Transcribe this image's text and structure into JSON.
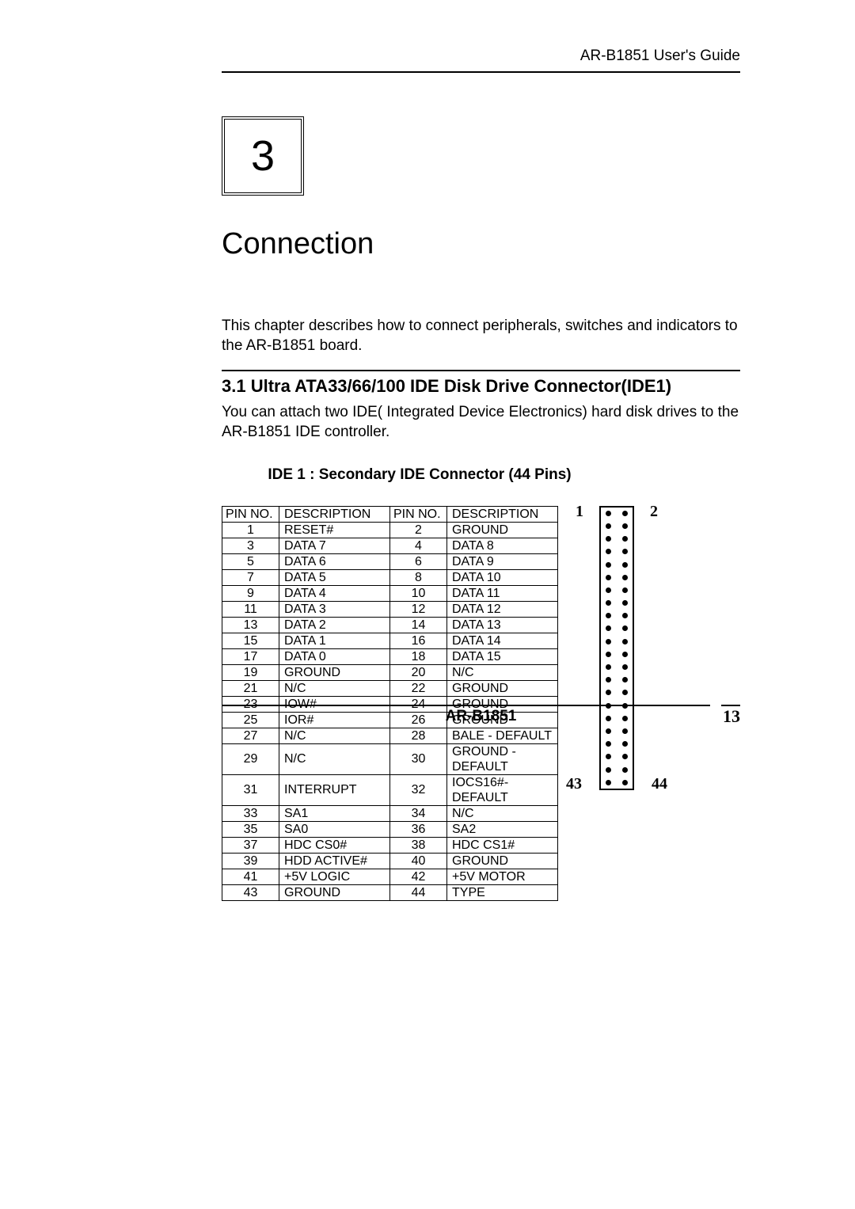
{
  "header": {
    "guide": "AR-B1851 User's Guide"
  },
  "chapter": {
    "number": "3",
    "title": "Connection"
  },
  "intro": "This chapter describes how to connect peripherals, switches and indicators to the AR-B1851  board.",
  "section": {
    "heading": "3.1 Ultra ATA33/66/100 IDE Disk Drive Connector(IDE1)",
    "body": "You can attach two IDE( Integrated Device Electronics) hard disk drives to the AR-B1851  IDE controller.",
    "ide_title": "IDE 1 :  Secondary IDE Connector (44 Pins)"
  },
  "table": {
    "headers": [
      "PIN NO.",
      "DESCRIPTION",
      "PIN NO.",
      "DESCRIPTION"
    ],
    "rows": [
      [
        "1",
        "RESET#",
        "2",
        "GROUND"
      ],
      [
        "3",
        "DATA 7",
        "4",
        "DATA 8"
      ],
      [
        "5",
        "DATA 6",
        "6",
        "DATA 9"
      ],
      [
        "7",
        "DATA 5",
        "8",
        "DATA 10"
      ],
      [
        "9",
        "DATA 4",
        "10",
        "DATA 11"
      ],
      [
        "11",
        "DATA 3",
        "12",
        "DATA 12"
      ],
      [
        "13",
        "DATA 2",
        "14",
        "DATA 13"
      ],
      [
        "15",
        "DATA 1",
        "16",
        "DATA 14"
      ],
      [
        "17",
        "DATA 0",
        "18",
        "DATA 15"
      ],
      [
        "19",
        "GROUND",
        "20",
        "N/C"
      ],
      [
        "21",
        "N/C",
        "22",
        "GROUND"
      ],
      [
        "23",
        "IOW#",
        "24",
        "GROUND"
      ],
      [
        "25",
        "IOR#",
        "26",
        "GROUND"
      ],
      [
        "27",
        "N/C",
        "28",
        "BALE - DEFAULT"
      ],
      [
        "29",
        "N/C",
        "30",
        "GROUND - DEFAULT"
      ],
      [
        "31",
        "INTERRUPT",
        "32",
        "IOCS16#-DEFAULT"
      ],
      [
        "33",
        "SA1",
        "34",
        "N/C"
      ],
      [
        "35",
        "SA0",
        "36",
        "SA2"
      ],
      [
        "37",
        "HDC CS0#",
        "38",
        "HDC CS1#"
      ],
      [
        "39",
        "HDD ACTIVE#",
        "40",
        "GROUND"
      ],
      [
        "41",
        "+5V LOGIC",
        "42",
        "+5V MOTOR"
      ],
      [
        "43",
        "GROUND",
        "44",
        "TYPE"
      ]
    ]
  },
  "connector": {
    "rows": 22,
    "labels": {
      "top_left": "1",
      "top_right": "2",
      "bottom_left": "43",
      "bottom_right": "44"
    }
  },
  "footer": {
    "title": "AR-B1851",
    "page": "13"
  },
  "colors": {
    "text": "#000000",
    "bg": "#ffffff",
    "border": "#000000"
  }
}
